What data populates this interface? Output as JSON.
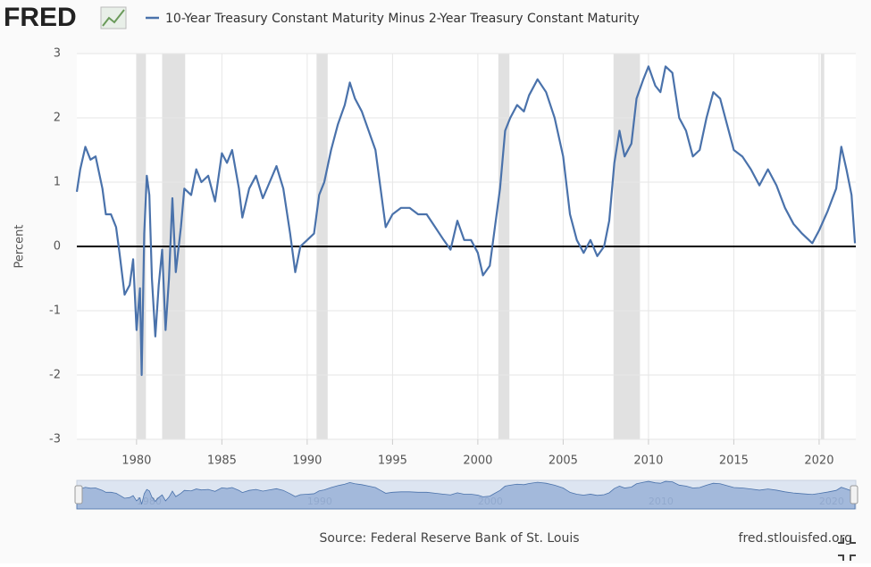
{
  "logo": "FRED",
  "chart_data": {
    "type": "line",
    "y_label": "Percent",
    "source": "Source: Federal Reserve Bank of St. Louis",
    "credit": "fred.stlouisfed.org",
    "xlim": [
      1976.5,
      2022.15
    ],
    "xticks": [
      1980,
      1985,
      1990,
      1995,
      2000,
      2005,
      2010,
      2015,
      2020
    ],
    "ylim": [
      -3,
      3
    ],
    "yticks": [
      -3,
      -2,
      -1,
      0,
      1,
      2,
      3
    ],
    "grid": true,
    "recessions": [
      [
        1980.0,
        1980.55
      ],
      [
        1981.5,
        1982.85
      ],
      [
        1990.55,
        1991.2
      ],
      [
        2001.2,
        2001.85
      ],
      [
        2007.95,
        2009.5
      ],
      [
        2020.1,
        2020.3
      ]
    ],
    "navigator_ticks": [
      1980,
      1990,
      2000,
      2010,
      2020
    ],
    "x": [
      1976.5,
      1976.7,
      1977.0,
      1977.3,
      1977.6,
      1978.0,
      1978.2,
      1978.5,
      1978.8,
      1979.0,
      1979.3,
      1979.6,
      1979.8,
      1980.0,
      1980.2,
      1980.3,
      1980.45,
      1980.6,
      1980.75,
      1980.9,
      1981.1,
      1981.3,
      1981.5,
      1981.7,
      1981.9,
      1982.1,
      1982.3,
      1982.6,
      1982.8,
      1983.2,
      1983.5,
      1983.8,
      1984.2,
      1984.6,
      1985.0,
      1985.3,
      1985.6,
      1986.0,
      1986.2,
      1986.6,
      1987.0,
      1987.4,
      1987.8,
      1988.2,
      1988.6,
      1989.0,
      1989.3,
      1989.6,
      1990.0,
      1990.4,
      1990.7,
      1991.0,
      1991.4,
      1991.8,
      1992.2,
      1992.5,
      1992.8,
      1993.2,
      1993.6,
      1994.0,
      1994.3,
      1994.6,
      1995.0,
      1995.5,
      1996.0,
      1996.5,
      1997.0,
      1997.5,
      1998.0,
      1998.4,
      1998.8,
      1999.2,
      1999.6,
      2000.0,
      2000.3,
      2000.7,
      2001.0,
      2001.3,
      2001.6,
      2001.9,
      2002.3,
      2002.7,
      2003.0,
      2003.5,
      2004.0,
      2004.5,
      2005.0,
      2005.4,
      2005.8,
      2006.2,
      2006.6,
      2007.0,
      2007.4,
      2007.7,
      2008.0,
      2008.3,
      2008.6,
      2009.0,
      2009.3,
      2009.7,
      2010.0,
      2010.4,
      2010.7,
      2011.0,
      2011.4,
      2011.8,
      2012.2,
      2012.6,
      2013.0,
      2013.4,
      2013.8,
      2014.2,
      2014.6,
      2015.0,
      2015.5,
      2016.0,
      2016.5,
      2017.0,
      2017.5,
      2018.0,
      2018.5,
      2019.0,
      2019.6,
      2020.0,
      2020.5,
      2021.0,
      2021.3,
      2021.6,
      2021.9,
      2022.1
    ],
    "series": [
      {
        "name": "10-Year Treasury Constant Maturity Minus 2-Year Treasury Constant Maturity",
        "color": "#4a72ab",
        "values": [
          0.85,
          1.2,
          1.55,
          1.35,
          1.4,
          0.9,
          0.5,
          0.5,
          0.3,
          -0.1,
          -0.75,
          -0.6,
          -0.2,
          -1.3,
          -0.65,
          -2.0,
          0.2,
          1.1,
          0.8,
          -0.5,
          -1.4,
          -0.6,
          -0.05,
          -1.3,
          -0.5,
          0.75,
          -0.4,
          0.3,
          0.9,
          0.8,
          1.2,
          1.0,
          1.1,
          0.7,
          1.45,
          1.3,
          1.5,
          0.9,
          0.45,
          0.9,
          1.1,
          0.75,
          1.0,
          1.25,
          0.9,
          0.2,
          -0.4,
          0.0,
          0.1,
          0.2,
          0.8,
          1.0,
          1.5,
          1.9,
          2.2,
          2.55,
          2.3,
          2.1,
          1.8,
          1.5,
          0.9,
          0.3,
          0.5,
          0.6,
          0.6,
          0.5,
          0.5,
          0.3,
          0.1,
          -0.05,
          0.4,
          0.1,
          0.1,
          -0.1,
          -0.45,
          -0.3,
          0.3,
          0.9,
          1.8,
          2.0,
          2.2,
          2.1,
          2.35,
          2.6,
          2.4,
          2.0,
          1.4,
          0.5,
          0.1,
          -0.1,
          0.1,
          -0.15,
          0.0,
          0.4,
          1.3,
          1.8,
          1.4,
          1.6,
          2.3,
          2.6,
          2.8,
          2.5,
          2.4,
          2.8,
          2.7,
          2.0,
          1.8,
          1.4,
          1.5,
          2.0,
          2.4,
          2.3,
          1.9,
          1.5,
          1.4,
          1.2,
          0.95,
          1.2,
          0.95,
          0.6,
          0.35,
          0.2,
          0.05,
          0.25,
          0.55,
          0.9,
          1.55,
          1.2,
          0.8,
          0.05
        ]
      }
    ]
  }
}
